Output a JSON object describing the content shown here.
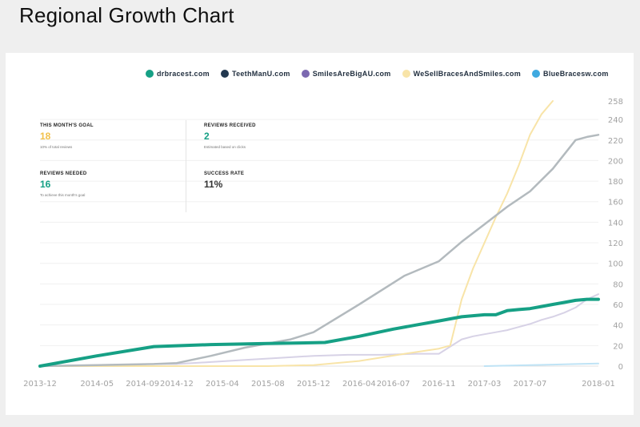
{
  "page": {
    "title": "Regional Growth Chart"
  },
  "stats": {
    "goal": {
      "label": "THIS MONTH'S GOAL",
      "value": "18",
      "note": "10% of total reviews"
    },
    "received": {
      "label": "REVIEWS RECEIVED",
      "value": "2",
      "note": "Estimated based on clicks"
    },
    "needed": {
      "label": "REVIEWS NEEDED",
      "value": "16",
      "note": "To achieve this month's goal"
    },
    "success": {
      "label": "SUCCESS RATE",
      "value": "11%"
    }
  },
  "colors": {
    "goal": "#f2c14b",
    "received": "#16a085",
    "needed": "#16a085",
    "success": "#333333"
  },
  "chart_data": {
    "type": "line",
    "title": "",
    "xlabel": "",
    "ylabel": "",
    "legend_position": "top",
    "grid": true,
    "xlim": [
      0,
      49
    ],
    "ylim": [
      0,
      258
    ],
    "x_ticks": [
      {
        "label": "2013-12",
        "x": 0
      },
      {
        "label": "2014-05",
        "x": 5
      },
      {
        "label": "2014-09",
        "x": 9
      },
      {
        "label": "2014-12",
        "x": 12
      },
      {
        "label": "2015-04",
        "x": 16
      },
      {
        "label": "2015-08",
        "x": 20
      },
      {
        "label": "2015-12",
        "x": 24
      },
      {
        "label": "2016-04",
        "x": 28
      },
      {
        "label": "2016-07",
        "x": 31
      },
      {
        "label": "2016-11",
        "x": 35
      },
      {
        "label": "2017-03",
        "x": 39
      },
      {
        "label": "2017-07",
        "x": 43
      },
      {
        "label": "2018-01",
        "x": 49
      }
    ],
    "y_ticks": [
      0,
      20,
      40,
      60,
      80,
      100,
      120,
      140,
      160,
      180,
      200,
      220,
      240,
      258
    ],
    "series": [
      {
        "name": "drbracest.com",
        "color": "#16a085",
        "width": 4,
        "points": [
          [
            0,
            0
          ],
          [
            5,
            10
          ],
          [
            10,
            19
          ],
          [
            15,
            21
          ],
          [
            20,
            22
          ],
          [
            25,
            23
          ],
          [
            28,
            29
          ],
          [
            31,
            36
          ],
          [
            33,
            40
          ],
          [
            35,
            44
          ],
          [
            37,
            48
          ],
          [
            38,
            49
          ],
          [
            39,
            50
          ],
          [
            40,
            50
          ],
          [
            41,
            54
          ],
          [
            42,
            55
          ],
          [
            43,
            56
          ],
          [
            44,
            58
          ],
          [
            45,
            60
          ],
          [
            46,
            62
          ],
          [
            47,
            64
          ],
          [
            48,
            65
          ],
          [
            49,
            65
          ]
        ]
      },
      {
        "name": "TeethManU.com",
        "color": "#b3babe",
        "width": 2.5,
        "points": [
          [
            0,
            0
          ],
          [
            5,
            1
          ],
          [
            10,
            2
          ],
          [
            12,
            3
          ],
          [
            15,
            10
          ],
          [
            18,
            18
          ],
          [
            22,
            26
          ],
          [
            24,
            33
          ],
          [
            28,
            60
          ],
          [
            32,
            88
          ],
          [
            35,
            102
          ],
          [
            37,
            121
          ],
          [
            39,
            138
          ],
          [
            41,
            155
          ],
          [
            43,
            170
          ],
          [
            45,
            192
          ],
          [
            47,
            220
          ],
          [
            48,
            223
          ],
          [
            49,
            225
          ]
        ]
      },
      {
        "name": "SmilesAreBigAU.com",
        "color": "#d7d2e6",
        "width": 2,
        "points": [
          [
            0,
            0
          ],
          [
            5,
            1
          ],
          [
            10,
            2
          ],
          [
            12,
            2
          ],
          [
            15,
            4
          ],
          [
            18,
            6
          ],
          [
            21,
            8
          ],
          [
            24,
            10
          ],
          [
            27,
            11
          ],
          [
            30,
            11
          ],
          [
            33,
            12
          ],
          [
            35,
            12
          ],
          [
            36,
            19
          ],
          [
            37,
            26
          ],
          [
            38,
            29
          ],
          [
            39,
            31
          ],
          [
            40,
            33
          ],
          [
            41,
            35
          ],
          [
            42,
            38
          ],
          [
            43,
            41
          ],
          [
            44,
            45
          ],
          [
            45,
            48
          ],
          [
            46,
            52
          ],
          [
            47,
            57
          ],
          [
            48,
            65
          ],
          [
            49,
            70
          ]
        ]
      },
      {
        "name": "WeSellBracesAndSmiles.com",
        "color": "#f8e4a8",
        "width": 2,
        "points": [
          [
            0,
            0
          ],
          [
            5,
            0
          ],
          [
            10,
            0
          ],
          [
            15,
            0
          ],
          [
            20,
            0
          ],
          [
            24,
            1
          ],
          [
            28,
            5
          ],
          [
            32,
            12
          ],
          [
            35,
            17
          ],
          [
            36,
            20
          ],
          [
            37,
            65
          ],
          [
            38,
            95
          ],
          [
            39,
            120
          ],
          [
            40,
            145
          ],
          [
            41,
            168
          ],
          [
            42,
            195
          ],
          [
            43,
            225
          ],
          [
            44,
            245
          ],
          [
            45,
            258
          ]
        ]
      },
      {
        "name": "BlueBracesw.com",
        "color": "#bfe3f5",
        "width": 2,
        "points": [
          [
            39,
            0
          ],
          [
            41,
            0.5
          ],
          [
            43,
            1
          ],
          [
            45,
            1.5
          ],
          [
            47,
            2
          ],
          [
            49,
            2.5
          ]
        ]
      }
    ],
    "legend": [
      {
        "name": "drbracest.com",
        "color": "#16a085"
      },
      {
        "name": "TeethManU.com",
        "color": "#22384f"
      },
      {
        "name": "SmilesAreBigAU.com",
        "color": "#7b68b0"
      },
      {
        "name": "WeSellBracesAndSmiles.com",
        "color": "#f8e4a8"
      },
      {
        "name": "BlueBracesw.com",
        "color": "#3fa9e0"
      }
    ]
  }
}
